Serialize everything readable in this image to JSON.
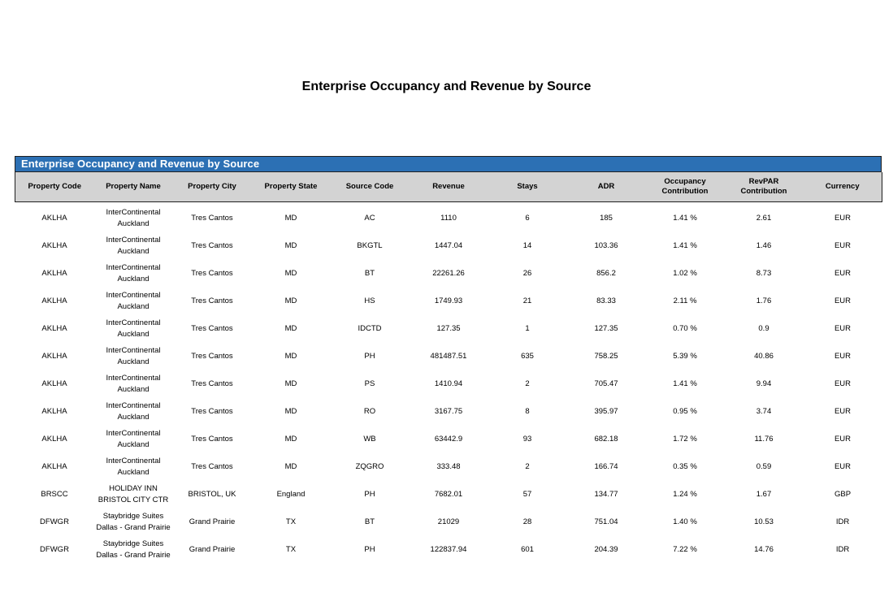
{
  "page_title": "Enterprise Occupancy and Revenue by Source",
  "colors": {
    "banner_bg": "#2c70b4",
    "banner_text": "#ffffff",
    "header_bg": "#d3d3d3",
    "border": "#1f1f1f"
  },
  "report": {
    "banner_title": "Enterprise Occupancy and Revenue by Source",
    "columns": [
      "Property Code",
      "Property Name",
      "Property City",
      "Property State",
      "Source Code",
      "Revenue",
      "Stays",
      "ADR",
      "Occupancy Contribution",
      "RevPAR Contribution",
      "Currency"
    ],
    "column_keys": [
      "property_code",
      "property_name",
      "property_city",
      "property_state",
      "source_code",
      "revenue",
      "stays",
      "adr",
      "occupancy_contribution",
      "revpar_contribution",
      "currency"
    ],
    "rows": [
      {
        "property_code": "AKLHA",
        "property_name": "InterContinental Auckland",
        "property_city": "Tres Cantos",
        "property_state": "MD",
        "source_code": "AC",
        "revenue": "1110",
        "stays": "6",
        "adr": "185",
        "occupancy_contribution": "1.41 %",
        "revpar_contribution": "2.61",
        "currency": "EUR"
      },
      {
        "property_code": "AKLHA",
        "property_name": "InterContinental Auckland",
        "property_city": "Tres Cantos",
        "property_state": "MD",
        "source_code": "BKGTL",
        "revenue": "1447.04",
        "stays": "14",
        "adr": "103.36",
        "occupancy_contribution": "1.41 %",
        "revpar_contribution": "1.46",
        "currency": "EUR"
      },
      {
        "property_code": "AKLHA",
        "property_name": "InterContinental Auckland",
        "property_city": "Tres Cantos",
        "property_state": "MD",
        "source_code": "BT",
        "revenue": "22261.26",
        "stays": "26",
        "adr": "856.2",
        "occupancy_contribution": "1.02 %",
        "revpar_contribution": "8.73",
        "currency": "EUR"
      },
      {
        "property_code": "AKLHA",
        "property_name": "InterContinental Auckland",
        "property_city": "Tres Cantos",
        "property_state": "MD",
        "source_code": "HS",
        "revenue": "1749.93",
        "stays": "21",
        "adr": "83.33",
        "occupancy_contribution": "2.11 %",
        "revpar_contribution": "1.76",
        "currency": "EUR"
      },
      {
        "property_code": "AKLHA",
        "property_name": "InterContinental Auckland",
        "property_city": "Tres Cantos",
        "property_state": "MD",
        "source_code": "IDCTD",
        "revenue": "127.35",
        "stays": "1",
        "adr": "127.35",
        "occupancy_contribution": "0.70 %",
        "revpar_contribution": "0.9",
        "currency": "EUR"
      },
      {
        "property_code": "AKLHA",
        "property_name": "InterContinental Auckland",
        "property_city": "Tres Cantos",
        "property_state": "MD",
        "source_code": "PH",
        "revenue": "481487.51",
        "stays": "635",
        "adr": "758.25",
        "occupancy_contribution": "5.39 %",
        "revpar_contribution": "40.86",
        "currency": "EUR"
      },
      {
        "property_code": "AKLHA",
        "property_name": "InterContinental Auckland",
        "property_city": "Tres Cantos",
        "property_state": "MD",
        "source_code": "PS",
        "revenue": "1410.94",
        "stays": "2",
        "adr": "705.47",
        "occupancy_contribution": "1.41 %",
        "revpar_contribution": "9.94",
        "currency": "EUR"
      },
      {
        "property_code": "AKLHA",
        "property_name": "InterContinental Auckland",
        "property_city": "Tres Cantos",
        "property_state": "MD",
        "source_code": "RO",
        "revenue": "3167.75",
        "stays": "8",
        "adr": "395.97",
        "occupancy_contribution": "0.95 %",
        "revpar_contribution": "3.74",
        "currency": "EUR"
      },
      {
        "property_code": "AKLHA",
        "property_name": "InterContinental Auckland",
        "property_city": "Tres Cantos",
        "property_state": "MD",
        "source_code": "WB",
        "revenue": "63442.9",
        "stays": "93",
        "adr": "682.18",
        "occupancy_contribution": "1.72 %",
        "revpar_contribution": "11.76",
        "currency": "EUR"
      },
      {
        "property_code": "AKLHA",
        "property_name": "InterContinental Auckland",
        "property_city": "Tres Cantos",
        "property_state": "MD",
        "source_code": "ZQGRO",
        "revenue": "333.48",
        "stays": "2",
        "adr": "166.74",
        "occupancy_contribution": "0.35 %",
        "revpar_contribution": "0.59",
        "currency": "EUR"
      },
      {
        "property_code": "BRSCC",
        "property_name": "HOLIDAY INN BRISTOL CITY CTR",
        "property_city": "BRISTOL, UK",
        "property_state": "England",
        "source_code": "PH",
        "revenue": "7682.01",
        "stays": "57",
        "adr": "134.77",
        "occupancy_contribution": "1.24 %",
        "revpar_contribution": "1.67",
        "currency": "GBP"
      },
      {
        "property_code": "DFWGR",
        "property_name": "Staybridge Suites Dallas - Grand Prairie",
        "property_city": "Grand Prairie",
        "property_state": "TX",
        "source_code": "BT",
        "revenue": "21029",
        "stays": "28",
        "adr": "751.04",
        "occupancy_contribution": "1.40 %",
        "revpar_contribution": "10.53",
        "currency": "IDR"
      },
      {
        "property_code": "DFWGR",
        "property_name": "Staybridge Suites Dallas - Grand Prairie",
        "property_city": "Grand Prairie",
        "property_state": "TX",
        "source_code": "PH",
        "revenue": "122837.94",
        "stays": "601",
        "adr": "204.39",
        "occupancy_contribution": "7.22 %",
        "revpar_contribution": "14.76",
        "currency": "IDR"
      }
    ]
  }
}
